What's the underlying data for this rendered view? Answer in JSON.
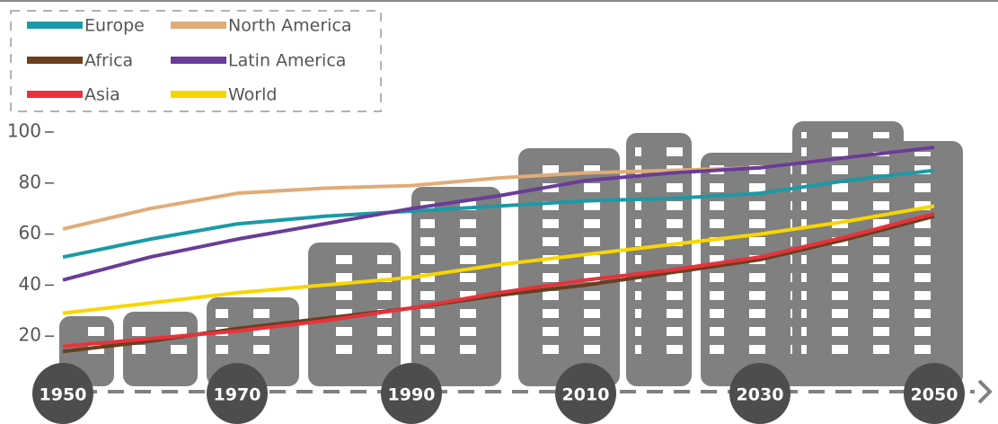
{
  "chart_data": {
    "type": "line",
    "x": [
      1950,
      1960,
      1970,
      1980,
      1990,
      2000,
      2010,
      2020,
      2030,
      2040,
      2050
    ],
    "xlim": [
      1950,
      2050
    ],
    "xticks": [
      1950,
      1970,
      1990,
      2010,
      2030,
      2050
    ],
    "ylim": [
      0,
      100
    ],
    "yticks": [
      20,
      40,
      60,
      80,
      100
    ],
    "series": [
      {
        "name": "Europe",
        "color": "#1a9aa6",
        "values": [
          51,
          58,
          64,
          67,
          69,
          71,
          73,
          74,
          76,
          81,
          85
        ]
      },
      {
        "name": "North America",
        "color": "#e0ac78",
        "values": [
          62,
          70,
          76,
          78,
          79,
          82,
          84,
          85,
          86,
          90,
          94
        ]
      },
      {
        "name": "Africa",
        "color": "#6b3e1e",
        "values": [
          14,
          18,
          23,
          27,
          31,
          36,
          40,
          45,
          50,
          58,
          67
        ]
      },
      {
        "name": "Latin America",
        "color": "#6a3c98",
        "values": [
          42,
          51,
          58,
          64,
          70,
          75,
          81,
          84,
          86,
          90,
          94
        ]
      },
      {
        "name": "Asia",
        "color": "#e8323c",
        "values": [
          16,
          19,
          22,
          26,
          31,
          37,
          42,
          46,
          51,
          59,
          68
        ]
      },
      {
        "name": "World",
        "color": "#f7d600",
        "values": [
          29,
          33,
          37,
          40,
          43,
          48,
          52,
          56,
          60,
          65,
          71
        ]
      }
    ]
  }
}
